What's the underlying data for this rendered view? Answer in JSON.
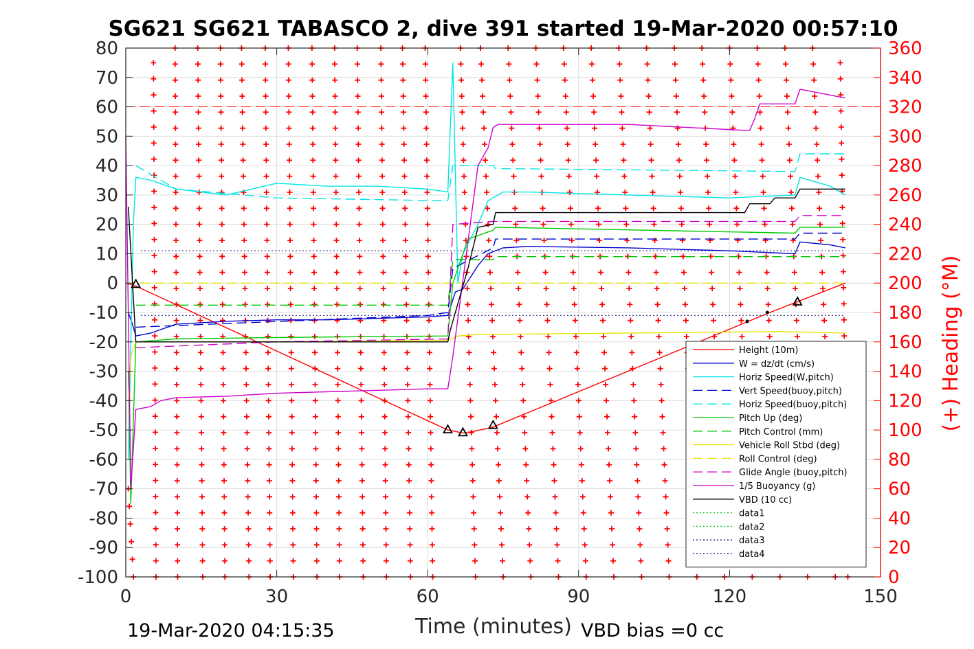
{
  "chart_data": {
    "type": "line",
    "title": "SG621 SG621 TABASCO 2, dive 391 started 19-Mar-2020 00:57:10",
    "xlabel": "Time (minutes)",
    "ylabel": "",
    "y2label": "(+) Heading (°M)",
    "xlim": [
      0,
      150
    ],
    "ylim": [
      -100,
      80
    ],
    "y2lim": [
      0,
      360
    ],
    "xticks": [
      0,
      30,
      60,
      90,
      120,
      150
    ],
    "yticks": [
      80,
      70,
      60,
      50,
      40,
      30,
      20,
      10,
      0,
      -10,
      -20,
      -30,
      -40,
      -50,
      -60,
      -70,
      -80,
      -90,
      -100
    ],
    "y2ticks": [
      360,
      340,
      320,
      300,
      280,
      260,
      240,
      220,
      200,
      180,
      160,
      140,
      120,
      100,
      80,
      60,
      40,
      20,
      0
    ],
    "grid": true,
    "legend_position": "bottom-right",
    "footer_left": "19-Mar-2020 04:15:35",
    "footer_right": "VBD bias =0 cc",
    "reference_lines": [
      {
        "name": "ref-red-dashed",
        "y": 60,
        "color": "#ff0000",
        "style": "dashed"
      },
      {
        "name": "ref-blue-dotted-upper",
        "y": 11,
        "color": "#000080",
        "style": "dotted",
        "x": [
          3,
          143
        ]
      },
      {
        "name": "ref-blue-dotted-lower",
        "y": -11,
        "color": "#000080",
        "style": "dotted",
        "x": [
          3,
          143
        ]
      }
    ],
    "series": [
      {
        "name": "Height (10m)",
        "color": "#ff0000",
        "style": "solid",
        "x": [
          0,
          2,
          64,
          67,
          69,
          73,
          128,
          143
        ],
        "y": [
          0,
          -1,
          -50,
          -51,
          -50.5,
          -49,
          -10,
          0
        ]
      },
      {
        "name": "W = dz/dt (cm/s)",
        "color": "#0000cd",
        "style": "solid",
        "x": [
          0.5,
          1.5,
          2,
          5,
          10,
          20,
          30,
          40,
          50,
          60,
          64,
          65.5,
          67,
          70,
          72,
          75,
          80,
          100,
          120,
          133,
          134,
          140,
          143
        ],
        "y": [
          -10,
          -15,
          -18,
          -17,
          -14,
          -13,
          -12.5,
          -12.5,
          -12,
          -11.5,
          -11,
          -3,
          -2,
          6,
          10,
          12,
          12.5,
          12,
          11,
          10,
          14,
          13,
          12
        ]
      },
      {
        "name": "Horiz Speed(W,pitch)",
        "color": "#00e5e5",
        "style": "solid",
        "x": [
          0.5,
          1.5,
          2,
          5,
          10,
          20,
          30,
          40,
          50,
          60,
          64,
          65,
          66,
          67,
          70,
          72,
          75,
          80,
          100,
          120,
          133,
          134,
          140,
          143
        ],
        "y": [
          -60,
          20,
          36,
          35,
          32,
          30,
          34,
          33,
          33,
          32,
          31,
          75,
          0,
          10,
          20,
          28,
          31,
          31,
          30,
          29,
          30,
          36,
          33,
          30
        ]
      },
      {
        "name": "Vert Speed(buoy,pitch)",
        "color": "#0000cd",
        "style": "dashed",
        "x": [
          2,
          60,
          64,
          65,
          73,
          73.5,
          133,
          134,
          143
        ],
        "y": [
          -15,
          -11,
          -10,
          5,
          12,
          15,
          15,
          17,
          17
        ]
      },
      {
        "name": "Horiz Speed(buoy,pitch)",
        "color": "#00e5e5",
        "style": "dashed",
        "x": [
          2,
          10,
          30,
          64,
          65,
          73,
          73.5,
          133,
          134,
          143
        ],
        "y": [
          40,
          32,
          29,
          28,
          40,
          40,
          39,
          38,
          44,
          44
        ]
      },
      {
        "name": "Pitch Up (deg)",
        "color": "#00c800",
        "style": "solid",
        "x": [
          0.5,
          1,
          2,
          10,
          30,
          64,
          65,
          68,
          73,
          73.5,
          133,
          134,
          143
        ],
        "y": [
          -30,
          -75,
          -20,
          -19,
          -18.5,
          -18,
          0,
          15,
          18,
          19,
          17,
          19,
          19
        ]
      },
      {
        "name": "Pitch Control (mm)",
        "color": "#00c800",
        "style": "dashed",
        "x": [
          2,
          64,
          65,
          73,
          73.5,
          143
        ],
        "y": [
          -7.5,
          -7.5,
          8,
          8,
          9,
          9
        ]
      },
      {
        "name": "Vehicle Roll Stbd (deg)",
        "color": "#e5e500",
        "style": "solid",
        "x": [
          0.5,
          1,
          2,
          10,
          30,
          64,
          66,
          70,
          100,
          130,
          143
        ],
        "y": [
          -40,
          -25,
          -20,
          -20,
          -20,
          -19.5,
          -18,
          -17.5,
          -17,
          -16.5,
          -17
        ]
      },
      {
        "name": "Roll Control (deg)",
        "color": "#e5e500",
        "style": "dashed",
        "x": [
          0,
          143
        ],
        "y": [
          0,
          0
        ]
      },
      {
        "name": "Glide Angle (buoy,pitch)",
        "color": "#cc00cc",
        "style": "dashed",
        "x": [
          2,
          30,
          64,
          65,
          73,
          133,
          134,
          143
        ],
        "y": [
          -22,
          -20,
          -19,
          20,
          21,
          21,
          23,
          23
        ]
      },
      {
        "name": "1/5 Buoyancy (g)",
        "color": "#cc00cc",
        "style": "solid",
        "x": [
          0,
          1,
          2,
          5,
          7,
          10,
          20,
          30,
          60,
          64,
          65,
          70,
          72,
          73,
          74,
          100,
          123,
          124,
          125,
          126,
          133,
          134,
          140,
          143
        ],
        "y": [
          50,
          -70,
          -43,
          -42,
          -40,
          -39,
          -38.5,
          -37.5,
          -36,
          -36,
          -25,
          40,
          46,
          53,
          54,
          54,
          52,
          52,
          56,
          61,
          61,
          66,
          64,
          63
        ]
      },
      {
        "name": "VBD (10 cc)",
        "color": "#000000",
        "style": "solid",
        "x": [
          0.5,
          1.5,
          2,
          64,
          64.5,
          68,
          70,
          73,
          73.5,
          123,
          124,
          128,
          129,
          133,
          134,
          143
        ],
        "y": [
          26,
          -5,
          -20,
          -20,
          -16,
          5,
          19,
          20,
          24,
          24,
          27,
          27,
          29,
          29,
          32,
          32
        ]
      },
      {
        "name": "data1",
        "color": "#00c800",
        "style": "dotted",
        "x": [],
        "y": []
      },
      {
        "name": "data2",
        "color": "#00c800",
        "style": "dotted",
        "x": [],
        "y": []
      },
      {
        "name": "data3",
        "color": "#000080",
        "style": "dotted",
        "x": [],
        "y": []
      },
      {
        "name": "data4",
        "color": "#000080",
        "style": "dotted",
        "x": [],
        "y": []
      }
    ],
    "markers": [
      {
        "name": "triangle-marker",
        "x": 2,
        "y": -0.5
      },
      {
        "name": "triangle-marker",
        "x": 64,
        "y": -50
      },
      {
        "name": "triangle-marker",
        "x": 67,
        "y": -51
      },
      {
        "name": "triangle-marker",
        "x": 73,
        "y": -48.5
      },
      {
        "name": "triangle-marker",
        "x": 133.5,
        "y": -6.5
      },
      {
        "name": "dot-marker",
        "x": 123.5,
        "y": -13
      },
      {
        "name": "dot-marker",
        "x": 127.5,
        "y": -10
      }
    ],
    "heading_series": {
      "name": "(+) Heading",
      "color": "#ff0000",
      "marker": "+",
      "note": "heading sampled every dive sample; wraps 0-360",
      "sweeps": [
        {
          "x_start": 0.5,
          "x_end": 1.5,
          "top": 60,
          "bottom": 0
        },
        {
          "x_start": 5.5,
          "x_end": 6.0,
          "top": 350,
          "bottom": 0
        },
        {
          "x_start": 9.8,
          "x_end": 10.3,
          "top": 360,
          "bottom": 0
        },
        {
          "x_start": 14.3,
          "x_end": 15.3,
          "top": 360,
          "bottom": 0
        },
        {
          "x_start": 18.8,
          "x_end": 19.7,
          "top": 360,
          "bottom": 0
        },
        {
          "x_start": 23.0,
          "x_end": 24.5,
          "top": 360,
          "bottom": 0
        },
        {
          "x_start": 27.7,
          "x_end": 28.7,
          "top": 360,
          "bottom": 0
        },
        {
          "x_start": 32.3,
          "x_end": 33.3,
          "top": 360,
          "bottom": 0
        },
        {
          "x_start": 37.0,
          "x_end": 38.0,
          "top": 360,
          "bottom": 0
        },
        {
          "x_start": 41.5,
          "x_end": 42.5,
          "top": 360,
          "bottom": 0
        },
        {
          "x_start": 46.0,
          "x_end": 47.2,
          "top": 360,
          "bottom": 0
        },
        {
          "x_start": 50.7,
          "x_end": 51.8,
          "top": 360,
          "bottom": 0
        },
        {
          "x_start": 55.0,
          "x_end": 56.6,
          "top": 360,
          "bottom": 0
        },
        {
          "x_start": 59.5,
          "x_end": 61.0,
          "top": 360,
          "bottom": 0
        },
        {
          "x_start": 66.5,
          "x_end": 69.5,
          "top": 360,
          "bottom": 0
        },
        {
          "x_start": 70.5,
          "x_end": 75.0,
          "top": 360,
          "bottom": 0
        },
        {
          "x_start": 76.0,
          "x_end": 80.5,
          "top": 360,
          "bottom": 0
        },
        {
          "x_start": 81.5,
          "x_end": 86.0,
          "top": 360,
          "bottom": 0
        },
        {
          "x_start": 87.0,
          "x_end": 91.5,
          "top": 360,
          "bottom": 0
        },
        {
          "x_start": 92.5,
          "x_end": 97.0,
          "top": 360,
          "bottom": 0
        },
        {
          "x_start": 98.0,
          "x_end": 102.5,
          "top": 360,
          "bottom": 0
        },
        {
          "x_start": 103.5,
          "x_end": 108.0,
          "top": 360,
          "bottom": 0
        },
        {
          "x_start": 109.0,
          "x_end": 113.5,
          "top": 360,
          "bottom": 0
        },
        {
          "x_start": 114.5,
          "x_end": 119.0,
          "top": 360,
          "bottom": 0
        },
        {
          "x_start": 120.0,
          "x_end": 124.5,
          "top": 360,
          "bottom": 0
        },
        {
          "x_start": 125.5,
          "x_end": 130.0,
          "top": 360,
          "bottom": 0
        },
        {
          "x_start": 131.0,
          "x_end": 135.5,
          "top": 360,
          "bottom": 0
        },
        {
          "x_start": 136.5,
          "x_end": 141.0,
          "top": 360,
          "bottom": 0
        },
        {
          "x_start": 142.0,
          "x_end": 143.5,
          "top": 350,
          "bottom": 0
        }
      ]
    },
    "colors": {
      "heading_axis": "#ff0000",
      "grid": "#dcdcdc",
      "axis": "#262626"
    }
  }
}
